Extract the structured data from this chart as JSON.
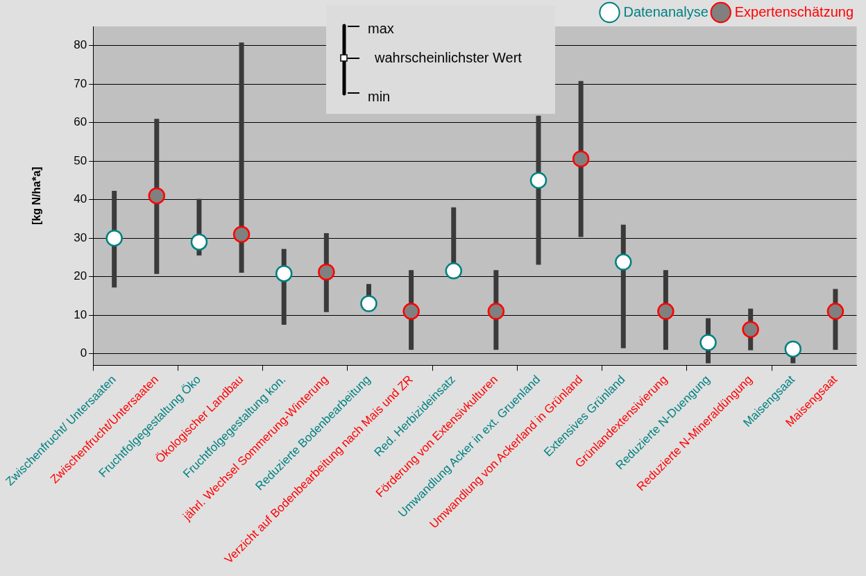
{
  "chart_data": {
    "type": "scatter",
    "ylabel": "[kg N/ha*a]",
    "categories": [
      "Zwischenfrucht/ Untersaaten",
      "Zwischenfrucht/Untersaaten",
      "Fruchtfolgegestaltung Öko",
      "Ökologischer Landbau",
      "Fruchtfolgegestaltung kon.",
      "jährl. Wechsel Sommerung-Winterung",
      "Reduzierte Bodenbearbeitung",
      "Verzicht auf Bodenbearbeitung nach Mais und ZR",
      "Red. Herbizideinsatz",
      "Förderung von Extensivkulturen",
      "Umwandlung Acker in ext. Gruenland",
      "Umwandlung von Ackerland in Grünland",
      "Extensives Grünland",
      "Grünlandextensivierung",
      "Reduzierte N-Duengung",
      "Reduzierte N-Mineraldüngung",
      "Maisengsaat",
      "Maisengsaat"
    ],
    "series": [
      {
        "name": "Datenanalyse",
        "color": "#008080",
        "values": [
          30,
          null,
          29,
          null,
          20.8,
          null,
          13,
          null,
          21.5,
          null,
          45,
          null,
          23.8,
          null,
          2.9,
          null,
          1.2,
          null
        ],
        "errors": [
          [
            17.2,
            42.3
          ],
          null,
          [
            25.5,
            40.2
          ],
          null,
          [
            7.5,
            27.2
          ],
          null,
          [
            13,
            18.1
          ],
          null,
          [
            21.5,
            38
          ],
          null,
          [
            23.1,
            61.8
          ],
          null,
          [
            1.4,
            33.5
          ],
          null,
          [
            -2.5,
            9.2
          ],
          null,
          [
            -2.5,
            1.2
          ],
          null
        ]
      },
      {
        "name": "Expertenschätzung",
        "color": "#ff0000",
        "values": [
          null,
          41,
          null,
          31,
          null,
          21.2,
          null,
          11,
          null,
          11,
          null,
          50.6,
          null,
          11,
          null,
          6.3,
          null,
          11
        ],
        "errors": [
          null,
          [
            20.7,
            61
          ],
          null,
          [
            21,
            80.8
          ],
          null,
          [
            10.8,
            31.3
          ],
          null,
          [
            1,
            21.7
          ],
          null,
          [
            1,
            21.7
          ],
          null,
          [
            30.3,
            70.8
          ],
          null,
          [
            1,
            21.7
          ],
          null,
          [
            0.9,
            11.7
          ],
          null,
          [
            1,
            16.8
          ]
        ]
      }
    ],
    "ylim": [
      -3,
      85
    ],
    "yticks": [
      0,
      10,
      20,
      30,
      40,
      50,
      60,
      70,
      80
    ],
    "grid": "y",
    "legend": "top right",
    "marker": "circle",
    "annotations": [
      "max",
      "wahrscheinlichster Wert",
      "min"
    ]
  }
}
